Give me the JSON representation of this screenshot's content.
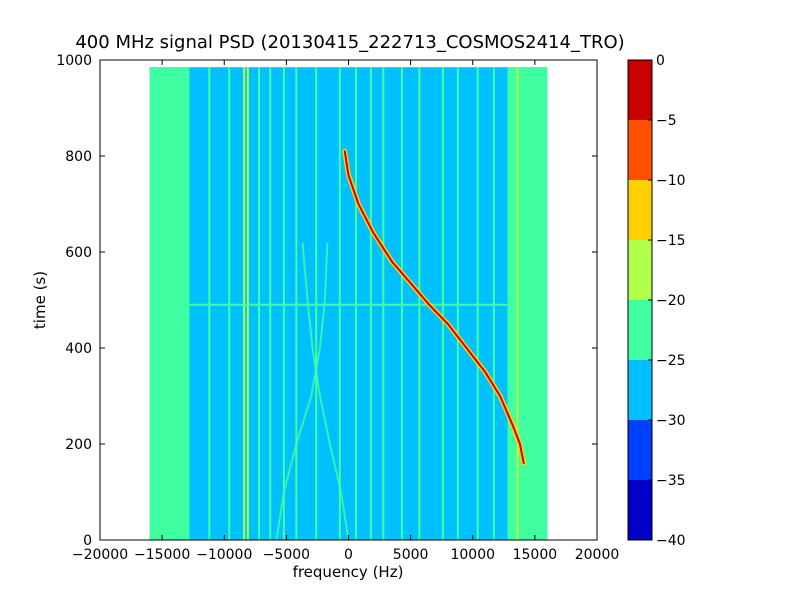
{
  "chart_data": {
    "type": "heatmap",
    "title": "400 MHz signal PSD (20130415_222713_COSMOS2414_TRO)",
    "xlabel": "frequency (Hz)",
    "ylabel": "time (s)",
    "xlim": [
      -20000,
      20000
    ],
    "ylim": [
      0,
      1000
    ],
    "xticks": [
      -20000,
      -15000,
      -10000,
      -5000,
      0,
      5000,
      10000,
      15000,
      20000
    ],
    "xtick_labels": [
      "−20000",
      "−15000",
      "−10000",
      "−5000",
      "0",
      "5000",
      "10000",
      "15000",
      "20000"
    ],
    "yticks": [
      0,
      200,
      400,
      600,
      800,
      1000
    ],
    "ytick_labels": [
      "0",
      "200",
      "400",
      "600",
      "800",
      "1000"
    ],
    "data_extent": {
      "x": [
        -16000,
        16000
      ],
      "y": [
        0,
        985
      ]
    },
    "background_level_range": [
      -30,
      -25
    ],
    "edge_band_level_range": [
      -25,
      -20
    ],
    "colorbar": {
      "levels": [
        -40,
        -35,
        -30,
        -25,
        -20,
        -15,
        -10,
        -5,
        0
      ],
      "tick_labels": [
        "−40",
        "−35",
        "−30",
        "−25",
        "−20",
        "−15",
        "−10",
        "−5",
        "0"
      ],
      "colors": [
        "#0000c8",
        "#0040ff",
        "#00c0ff",
        "#40ffa0",
        "#b0ff48",
        "#ffd000",
        "#ff5000",
        "#c80000"
      ]
    },
    "edge_bands": [
      {
        "x_start": -16000,
        "x_end": -12800
      },
      {
        "x_start": 12800,
        "x_end": 16000
      }
    ],
    "vertical_lines": [
      {
        "x": -13800,
        "level": -22
      },
      {
        "x": -12900,
        "level": -24
      },
      {
        "x": -11200,
        "level": -23
      },
      {
        "x": -9600,
        "level": -22
      },
      {
        "x": -8400,
        "level": -18
      },
      {
        "x": -8100,
        "level": -18
      },
      {
        "x": -7200,
        "level": -22
      },
      {
        "x": -6300,
        "level": -22
      },
      {
        "x": -5200,
        "level": -23
      },
      {
        "x": -4200,
        "level": -22
      },
      {
        "x": -2600,
        "level": -23
      },
      {
        "x": -700,
        "level": -22
      },
      {
        "x": 600,
        "level": -22
      },
      {
        "x": 1800,
        "level": -23
      },
      {
        "x": 2800,
        "level": -22
      },
      {
        "x": 4300,
        "level": -23
      },
      {
        "x": 5700,
        "level": -22
      },
      {
        "x": 7600,
        "level": -22
      },
      {
        "x": 8800,
        "level": -23
      },
      {
        "x": 10400,
        "level": -22
      },
      {
        "x": 11700,
        "level": -22
      },
      {
        "x": 12900,
        "level": -22
      },
      {
        "x": 13600,
        "level": -20
      }
    ],
    "horizontal_band": {
      "y": 490,
      "x_range": [
        -13000,
        12800
      ],
      "level": -22
    },
    "faint_sweeps": [
      {
        "points": [
          [
            -3700,
            620
          ],
          [
            -3300,
            500
          ],
          [
            -2900,
            400
          ],
          [
            -2300,
            300
          ],
          [
            -1500,
            200
          ],
          [
            -600,
            100
          ],
          [
            0,
            0
          ]
        ],
        "level": -22
      },
      {
        "points": [
          [
            -1700,
            620
          ],
          [
            -1900,
            500
          ],
          [
            -2300,
            400
          ],
          [
            -3000,
            300
          ],
          [
            -4200,
            200
          ],
          [
            -5200,
            100
          ],
          [
            -5800,
            0
          ]
        ],
        "level": -22
      }
    ],
    "series": [
      {
        "type": "line",
        "level": -2,
        "points": [
          [
            -300,
            810
          ],
          [
            0,
            760
          ],
          [
            800,
            700
          ],
          [
            2000,
            640
          ],
          [
            3500,
            580
          ],
          [
            5000,
            535
          ],
          [
            6500,
            490
          ],
          [
            8000,
            450
          ],
          [
            9500,
            400
          ],
          [
            11000,
            350
          ],
          [
            12200,
            300
          ],
          [
            13200,
            240
          ],
          [
            13800,
            200
          ],
          [
            14100,
            160
          ]
        ]
      }
    ]
  }
}
